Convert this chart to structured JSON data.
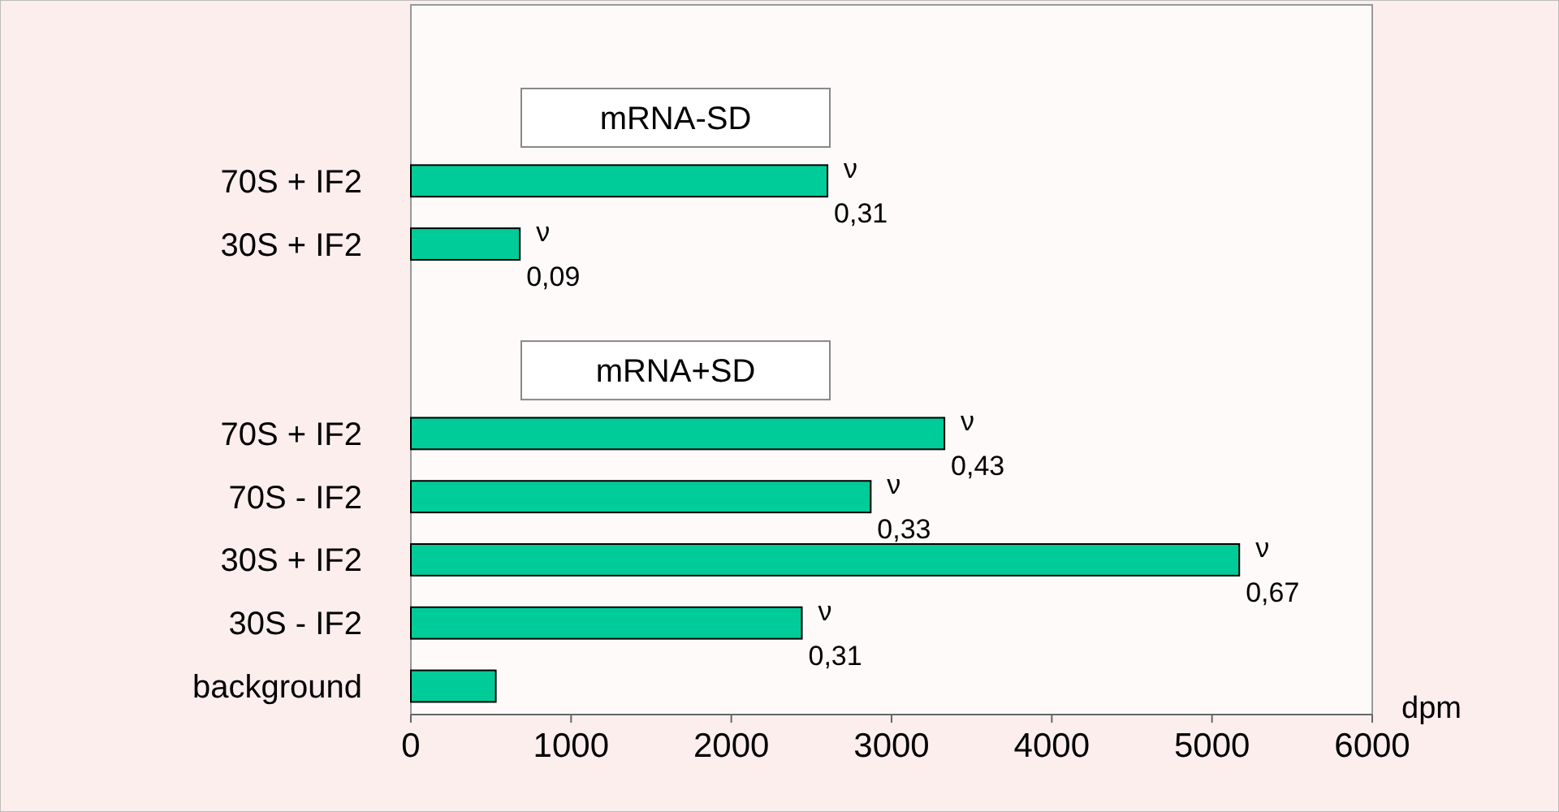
{
  "chart_data": {
    "type": "bar",
    "orientation": "horizontal",
    "xlabel": "dpm",
    "categories": [
      null,
      "70S + IF2",
      "30S + IF2",
      null,
      null,
      "70S + IF2",
      "70S - IF2",
      "30S + IF2",
      "30S - IF2",
      "background"
    ],
    "values": [
      null,
      2600,
      680,
      null,
      null,
      3330,
      2870,
      5170,
      2440,
      530
    ],
    "value_labels": [
      null,
      "ν 0,31",
      "ν 0,09",
      null,
      null,
      "ν 0,43",
      "ν 0,33",
      "ν 0,67",
      "ν 0,31",
      null
    ],
    "color": "#00cc99",
    "annotations": [
      "mRNA-SD",
      "mRNA+SD"
    ],
    "xlim": [
      0,
      6000
    ],
    "xticks": [
      0,
      1000,
      2000,
      3000,
      4000,
      5000,
      6000
    ]
  }
}
